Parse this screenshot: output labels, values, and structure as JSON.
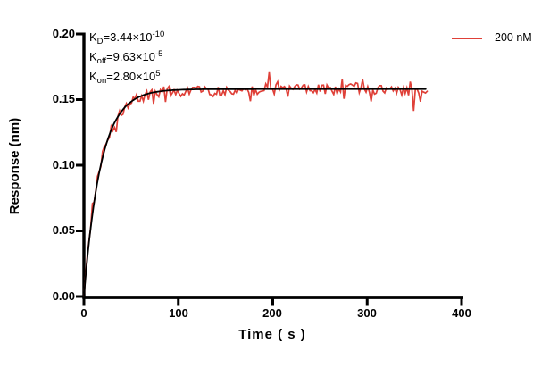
{
  "figure": {
    "background": "#ffffff",
    "axis_color": "#000000"
  },
  "chart_data": {
    "type": "line",
    "title": "",
    "xlabel": "Time ( s )",
    "ylabel": "Response (nm)",
    "xlim": [
      0,
      400
    ],
    "ylim": [
      0,
      0.2
    ],
    "grid": false,
    "xticks": [
      "0",
      "100",
      "200",
      "300",
      "400"
    ],
    "yticks": [
      "0.00",
      "0.05",
      "0.10",
      "0.15",
      "0.20"
    ],
    "xtick_values": [
      0,
      100,
      200,
      300,
      400
    ],
    "ytick_values": [
      0,
      0.05,
      0.1,
      0.15,
      0.2
    ],
    "legend": {
      "label": "200 nM",
      "color": "#df4038",
      "position": "top-right"
    },
    "annotations": [
      {
        "pre": "K",
        "sub": "D",
        "mid": "=3.44×10",
        "sup": "-10"
      },
      {
        "pre": "K",
        "sub": "off",
        "mid": "=9.63×10",
        "sup": "-5"
      },
      {
        "pre": "K",
        "sub": "on",
        "mid": "=2.80×10",
        "sup": "5"
      }
    ],
    "kinetics": {
      "KD": "3.44×10⁻¹⁰",
      "Koff": "9.63×10⁻⁵",
      "Kon": "2.80×10⁵"
    },
    "series": [
      {
        "name": "200 nM",
        "role": "measured",
        "color": "#df4038",
        "model": "one-site association",
        "rmax": 0.158,
        "kobs": 0.0561,
        "t_start": 0,
        "t_end": 365,
        "dt": 1.8,
        "noise_sd": 0.0038,
        "drift_sd": 0.0032,
        "spike_prob": 0.1,
        "events": [
          {
            "t": 196,
            "dy": 0.012
          },
          {
            "t": 349,
            "dy": -0.012
          }
        ]
      },
      {
        "name": "fit",
        "role": "fit",
        "color": "#000000",
        "rmax": 0.158,
        "kobs": 0.0561,
        "t_start": 0,
        "t_end": 362
      }
    ],
    "fit_sample_points": {
      "t": [
        0,
        10,
        20,
        30,
        40,
        50,
        60,
        80,
        100,
        150,
        200,
        250,
        300,
        350
      ],
      "response": [
        0,
        0.068,
        0.107,
        0.129,
        0.141,
        0.148,
        0.153,
        0.156,
        0.157,
        0.158,
        0.158,
        0.158,
        0.158,
        0.158
      ]
    }
  }
}
